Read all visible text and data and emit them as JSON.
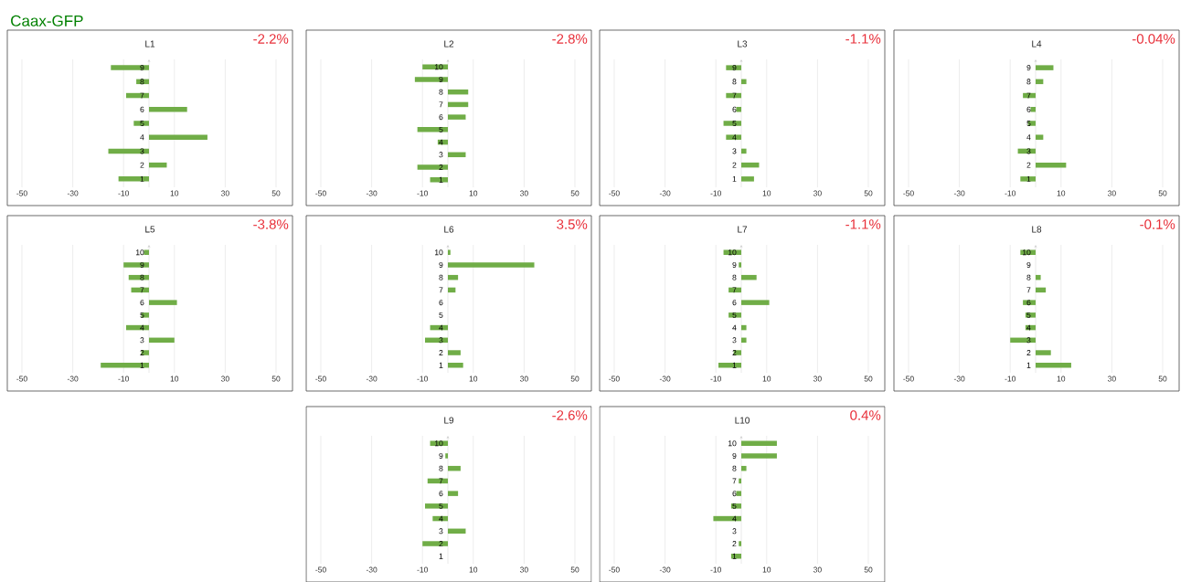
{
  "chart_data": [
    {
      "type": "bar",
      "orientation": "horizontal",
      "subtitle": "Caax-GFP",
      "title": "L1",
      "annotations": [
        "-2.2%"
      ],
      "categories": [
        "9",
        "8",
        "7",
        "6",
        "5",
        "4",
        "3",
        "2",
        "1"
      ],
      "values": [
        -15,
        -5,
        -9,
        15,
        -6,
        23,
        -16,
        7,
        -12
      ],
      "color": "#70ad47",
      "xlim": [
        -50,
        50
      ],
      "xticks": [
        -50,
        -30,
        -10,
        10,
        30,
        50
      ],
      "grid": "x"
    },
    {
      "type": "bar",
      "orientation": "horizontal",
      "title": "L2",
      "annotations": [
        "-2.8%"
      ],
      "categories": [
        "10",
        "9",
        "8",
        "7",
        "6",
        "5",
        "4",
        "3",
        "2",
        "1"
      ],
      "values": [
        -10,
        -13,
        8,
        8,
        7,
        -12,
        -4,
        7,
        -12,
        -7
      ],
      "color": "#70ad47",
      "xlim": [
        -50,
        50
      ],
      "xticks": [
        -50,
        -30,
        -10,
        10,
        30,
        50
      ],
      "grid": "x"
    },
    {
      "type": "bar",
      "orientation": "horizontal",
      "title": "L3",
      "annotations": [
        "-1.1%"
      ],
      "categories": [
        "9",
        "8",
        "7",
        "6",
        "5",
        "4",
        "3",
        "2",
        "1"
      ],
      "values": [
        -6,
        2,
        -6,
        -2,
        -7,
        -6,
        2,
        7,
        5
      ],
      "color": "#70ad47",
      "xlim": [
        -50,
        50
      ],
      "xticks": [
        -50,
        -30,
        -10,
        10,
        30,
        50
      ],
      "grid": "x"
    },
    {
      "type": "bar",
      "orientation": "horizontal",
      "title": "L4",
      "annotations": [
        "-0.04%"
      ],
      "categories": [
        "9",
        "8",
        "7",
        "6",
        "5",
        "4",
        "3",
        "2",
        "1"
      ],
      "values": [
        7,
        3,
        -5,
        -2,
        -3,
        3,
        -7,
        12,
        -6
      ],
      "color": "#70ad47",
      "xlim": [
        -50,
        50
      ],
      "xticks": [
        -50,
        -30,
        -10,
        10,
        30,
        50
      ],
      "grid": "x"
    },
    {
      "type": "bar",
      "orientation": "horizontal",
      "title": "L5",
      "annotations": [
        "-3.8%"
      ],
      "categories": [
        "10",
        "9",
        "8",
        "7",
        "6",
        "5",
        "4",
        "3",
        "2",
        "1"
      ],
      "values": [
        -2,
        -10,
        -8,
        -7,
        11,
        -3,
        -9,
        10,
        -3,
        -19
      ],
      "color": "#70ad47",
      "xlim": [
        -50,
        50
      ],
      "xticks": [
        -50,
        -30,
        -10,
        10,
        30,
        50
      ],
      "grid": "x"
    },
    {
      "type": "bar",
      "orientation": "horizontal",
      "title": "L6",
      "annotations": [
        "3.5%"
      ],
      "categories": [
        "10",
        "9",
        "8",
        "7",
        "6",
        "5",
        "4",
        "3",
        "2",
        "1"
      ],
      "values": [
        1,
        34,
        4,
        3,
        0,
        0,
        -7,
        -9,
        5,
        6
      ],
      "color": "#70ad47",
      "xlim": [
        -50,
        50
      ],
      "xticks": [
        -50,
        -30,
        -10,
        10,
        30,
        50
      ],
      "grid": "x"
    },
    {
      "type": "bar",
      "orientation": "horizontal",
      "title": "L7",
      "annotations": [
        "-1.1%"
      ],
      "categories": [
        "10",
        "9",
        "8",
        "7",
        "6",
        "5",
        "4",
        "3",
        "2",
        "1"
      ],
      "values": [
        -7,
        -1,
        6,
        -5,
        11,
        -5,
        2,
        2,
        -3,
        -9
      ],
      "color": "#70ad47",
      "xlim": [
        -50,
        50
      ],
      "xticks": [
        -50,
        -30,
        -10,
        10,
        30,
        50
      ],
      "grid": "x"
    },
    {
      "type": "bar",
      "orientation": "horizontal",
      "title": "L8",
      "annotations": [
        "-0.1%"
      ],
      "categories": [
        "10",
        "9",
        "8",
        "7",
        "6",
        "5",
        "4",
        "3",
        "2",
        "1"
      ],
      "values": [
        -6,
        0,
        2,
        4,
        -5,
        -4,
        -4,
        -10,
        6,
        14
      ],
      "color": "#70ad47",
      "xlim": [
        -50,
        50
      ],
      "xticks": [
        -50,
        -30,
        -10,
        10,
        30,
        50
      ],
      "grid": "x"
    },
    {
      "type": "bar",
      "orientation": "horizontal",
      "title": "L9",
      "annotations": [
        "-2.6%"
      ],
      "categories": [
        "10",
        "9",
        "8",
        "7",
        "6",
        "5",
        "4",
        "3",
        "2",
        "1"
      ],
      "values": [
        -7,
        -1,
        5,
        -8,
        4,
        -9,
        -6,
        7,
        -10,
        0
      ],
      "color": "#70ad47",
      "xlim": [
        -50,
        50
      ],
      "xticks": [
        -50,
        -30,
        -10,
        10,
        30,
        50
      ],
      "grid": "x"
    },
    {
      "type": "bar",
      "orientation": "horizontal",
      "title": "L10",
      "annotations": [
        "0.4%"
      ],
      "categories": [
        "10",
        "9",
        "8",
        "7",
        "6",
        "5",
        "4",
        "3",
        "2",
        "1"
      ],
      "values": [
        14,
        14,
        2,
        -1,
        -2,
        -4,
        -11,
        0,
        -1,
        -4
      ],
      "color": "#70ad47",
      "xlim": [
        -50,
        50
      ],
      "xticks": [
        -50,
        -30,
        -10,
        10,
        30,
        50
      ],
      "grid": "x"
    }
  ]
}
